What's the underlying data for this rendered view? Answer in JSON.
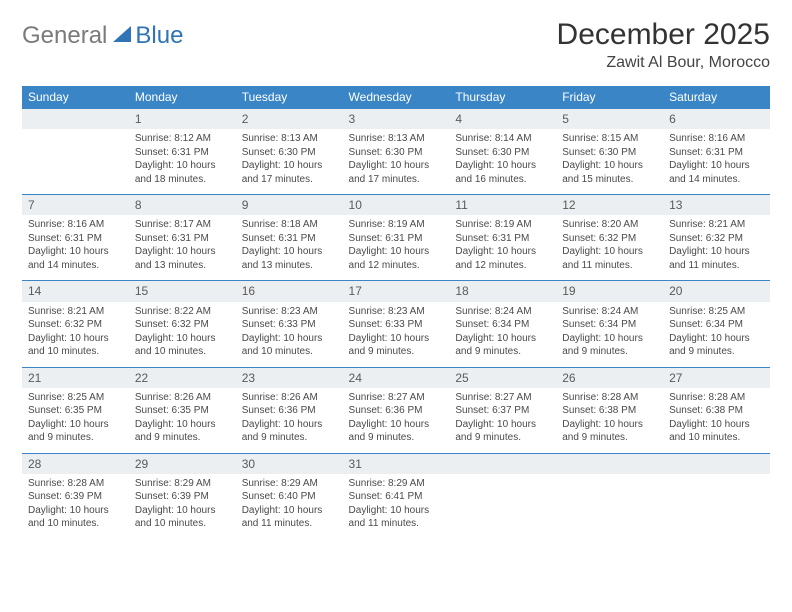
{
  "logo": {
    "text1": "General",
    "text2": "Blue"
  },
  "title": "December 2025",
  "location": "Zawit Al Bour, Morocco",
  "colors": {
    "header_bg": "#3a85c6",
    "header_text": "#ffffff",
    "daynum_bg": "#eceff1",
    "border": "#3a85c6",
    "logo_gray": "#7a7a7a",
    "logo_blue": "#2f74b5",
    "body_text": "#4a4a4a"
  },
  "weekdays": [
    "Sunday",
    "Monday",
    "Tuesday",
    "Wednesday",
    "Thursday",
    "Friday",
    "Saturday"
  ],
  "cells": [
    {
      "n": "",
      "sr": "",
      "ss": "",
      "dl": ""
    },
    {
      "n": "1",
      "sr": "8:12 AM",
      "ss": "6:31 PM",
      "dl": "10 hours and 18 minutes."
    },
    {
      "n": "2",
      "sr": "8:13 AM",
      "ss": "6:30 PM",
      "dl": "10 hours and 17 minutes."
    },
    {
      "n": "3",
      "sr": "8:13 AM",
      "ss": "6:30 PM",
      "dl": "10 hours and 17 minutes."
    },
    {
      "n": "4",
      "sr": "8:14 AM",
      "ss": "6:30 PM",
      "dl": "10 hours and 16 minutes."
    },
    {
      "n": "5",
      "sr": "8:15 AM",
      "ss": "6:30 PM",
      "dl": "10 hours and 15 minutes."
    },
    {
      "n": "6",
      "sr": "8:16 AM",
      "ss": "6:31 PM",
      "dl": "10 hours and 14 minutes."
    },
    {
      "n": "7",
      "sr": "8:16 AM",
      "ss": "6:31 PM",
      "dl": "10 hours and 14 minutes."
    },
    {
      "n": "8",
      "sr": "8:17 AM",
      "ss": "6:31 PM",
      "dl": "10 hours and 13 minutes."
    },
    {
      "n": "9",
      "sr": "8:18 AM",
      "ss": "6:31 PM",
      "dl": "10 hours and 13 minutes."
    },
    {
      "n": "10",
      "sr": "8:19 AM",
      "ss": "6:31 PM",
      "dl": "10 hours and 12 minutes."
    },
    {
      "n": "11",
      "sr": "8:19 AM",
      "ss": "6:31 PM",
      "dl": "10 hours and 12 minutes."
    },
    {
      "n": "12",
      "sr": "8:20 AM",
      "ss": "6:32 PM",
      "dl": "10 hours and 11 minutes."
    },
    {
      "n": "13",
      "sr": "8:21 AM",
      "ss": "6:32 PM",
      "dl": "10 hours and 11 minutes."
    },
    {
      "n": "14",
      "sr": "8:21 AM",
      "ss": "6:32 PM",
      "dl": "10 hours and 10 minutes."
    },
    {
      "n": "15",
      "sr": "8:22 AM",
      "ss": "6:32 PM",
      "dl": "10 hours and 10 minutes."
    },
    {
      "n": "16",
      "sr": "8:23 AM",
      "ss": "6:33 PM",
      "dl": "10 hours and 10 minutes."
    },
    {
      "n": "17",
      "sr": "8:23 AM",
      "ss": "6:33 PM",
      "dl": "10 hours and 9 minutes."
    },
    {
      "n": "18",
      "sr": "8:24 AM",
      "ss": "6:34 PM",
      "dl": "10 hours and 9 minutes."
    },
    {
      "n": "19",
      "sr": "8:24 AM",
      "ss": "6:34 PM",
      "dl": "10 hours and 9 minutes."
    },
    {
      "n": "20",
      "sr": "8:25 AM",
      "ss": "6:34 PM",
      "dl": "10 hours and 9 minutes."
    },
    {
      "n": "21",
      "sr": "8:25 AM",
      "ss": "6:35 PM",
      "dl": "10 hours and 9 minutes."
    },
    {
      "n": "22",
      "sr": "8:26 AM",
      "ss": "6:35 PM",
      "dl": "10 hours and 9 minutes."
    },
    {
      "n": "23",
      "sr": "8:26 AM",
      "ss": "6:36 PM",
      "dl": "10 hours and 9 minutes."
    },
    {
      "n": "24",
      "sr": "8:27 AM",
      "ss": "6:36 PM",
      "dl": "10 hours and 9 minutes."
    },
    {
      "n": "25",
      "sr": "8:27 AM",
      "ss": "6:37 PM",
      "dl": "10 hours and 9 minutes."
    },
    {
      "n": "26",
      "sr": "8:28 AM",
      "ss": "6:38 PM",
      "dl": "10 hours and 9 minutes."
    },
    {
      "n": "27",
      "sr": "8:28 AM",
      "ss": "6:38 PM",
      "dl": "10 hours and 10 minutes."
    },
    {
      "n": "28",
      "sr": "8:28 AM",
      "ss": "6:39 PM",
      "dl": "10 hours and 10 minutes."
    },
    {
      "n": "29",
      "sr": "8:29 AM",
      "ss": "6:39 PM",
      "dl": "10 hours and 10 minutes."
    },
    {
      "n": "30",
      "sr": "8:29 AM",
      "ss": "6:40 PM",
      "dl": "10 hours and 11 minutes."
    },
    {
      "n": "31",
      "sr": "8:29 AM",
      "ss": "6:41 PM",
      "dl": "10 hours and 11 minutes."
    },
    {
      "n": "",
      "sr": "",
      "ss": "",
      "dl": ""
    },
    {
      "n": "",
      "sr": "",
      "ss": "",
      "dl": ""
    },
    {
      "n": "",
      "sr": "",
      "ss": "",
      "dl": ""
    }
  ],
  "labels": {
    "sunrise": "Sunrise:",
    "sunset": "Sunset:",
    "daylight": "Daylight:"
  }
}
